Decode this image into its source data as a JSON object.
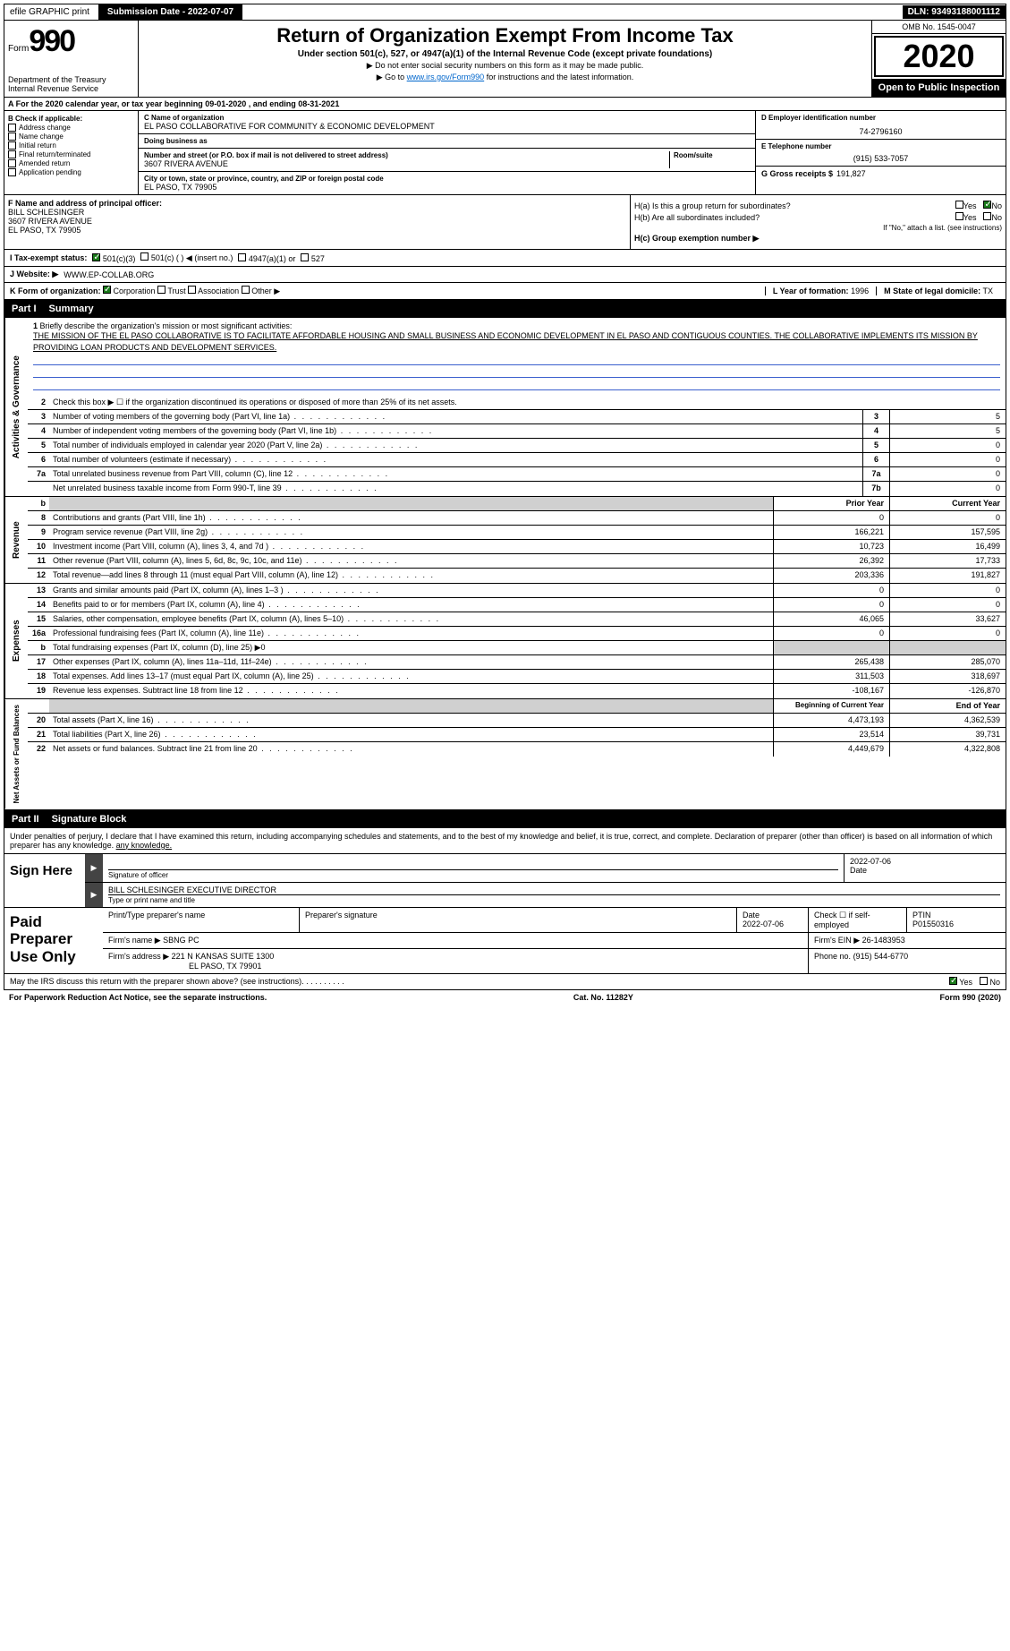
{
  "topbar": {
    "efile": "efile GRAPHIC print",
    "submission_label": "Submission Date - 2022-07-07",
    "dln": "DLN: 93493188001112"
  },
  "header": {
    "form_prefix": "Form",
    "form_number": "990",
    "dept": "Department of the Treasury\nInternal Revenue Service",
    "title": "Return of Organization Exempt From Income Tax",
    "subtitle": "Under section 501(c), 527, or 4947(a)(1) of the Internal Revenue Code (except private foundations)",
    "note1": "▶ Do not enter social security numbers on this form as it may be made public.",
    "note2_pre": "▶ Go to ",
    "note2_link": "www.irs.gov/Form990",
    "note2_post": " for instructions and the latest information.",
    "omb": "OMB No. 1545-0047",
    "year": "2020",
    "open": "Open to Public Inspection"
  },
  "row_a": "A For the 2020 calendar year, or tax year beginning 09-01-2020    , and ending 08-31-2021",
  "box_b": {
    "label": "B Check if applicable:",
    "items": [
      "Address change",
      "Name change",
      "Initial return",
      "Final return/terminated",
      "Amended return",
      "Application pending"
    ]
  },
  "box_c": {
    "name_lbl": "C Name of organization",
    "name": "EL PASO COLLABORATIVE FOR COMMUNITY & ECONOMIC DEVELOPMENT",
    "dba_lbl": "Doing business as",
    "dba": "",
    "addr_lbl": "Number and street (or P.O. box if mail is not delivered to street address)",
    "addr": "3607 RIVERA AVENUE",
    "room_lbl": "Room/suite",
    "city_lbl": "City or town, state or province, country, and ZIP or foreign postal code",
    "city": "EL PASO, TX  79905"
  },
  "box_d": {
    "lbl": "D Employer identification number",
    "val": "74-2796160"
  },
  "box_e": {
    "lbl": "E Telephone number",
    "val": "(915) 533-7057"
  },
  "box_g": {
    "lbl": "G Gross receipts $",
    "val": "191,827"
  },
  "box_f": {
    "lbl": "F  Name and address of principal officer:",
    "name": "BILL SCHLESINGER",
    "addr": "3607 RIVERA AVENUE",
    "city": "EL PASO, TX  79905"
  },
  "box_h": {
    "a": "H(a)  Is this a group return for subordinates?",
    "b": "H(b)  Are all subordinates included?",
    "note": "If \"No,\" attach a list. (see instructions)",
    "c": "H(c)  Group exemption number ▶"
  },
  "box_i": {
    "lbl": "I   Tax-exempt status:",
    "opts": [
      "501(c)(3)",
      "501(c) (   ) ◀ (insert no.)",
      "4947(a)(1) or",
      "527"
    ]
  },
  "box_j": {
    "lbl": "J  Website: ▶",
    "val": "WWW.EP-COLLAB.ORG"
  },
  "box_k": {
    "lbl": "K Form of organization:",
    "opts": [
      "Corporation",
      "Trust",
      "Association",
      "Other ▶"
    ]
  },
  "box_l": {
    "lbl": "L Year of formation:",
    "val": "1996"
  },
  "box_m": {
    "lbl": "M State of legal domicile:",
    "val": "TX"
  },
  "part1": {
    "num": "Part I",
    "title": "Summary"
  },
  "mission": {
    "num": "1",
    "lbl": "Briefly describe the organization's mission or most significant activities:",
    "text": "THE MISSION OF THE EL PASO COLLABORATIVE IS TO FACILITATE AFFORDABLE HOUSING AND SMALL BUSINESS AND ECONOMIC DEVELOPMENT IN EL PASO AND CONTIGUOUS COUNTIES. THE COLLABORATIVE IMPLEMENTS ITS MISSION BY PROVIDING LOAN PRODUCTS AND DEVELOPMENT SERVICES."
  },
  "gov_rows": [
    {
      "n": "2",
      "d": "Check this box ▶ ☐ if the organization discontinued its operations or disposed of more than 25% of its net assets.",
      "box": "",
      "v1": "",
      "v2": ""
    },
    {
      "n": "3",
      "d": "Number of voting members of the governing body (Part VI, line 1a)",
      "box": "3",
      "v2": "5"
    },
    {
      "n": "4",
      "d": "Number of independent voting members of the governing body (Part VI, line 1b)",
      "box": "4",
      "v2": "5"
    },
    {
      "n": "5",
      "d": "Total number of individuals employed in calendar year 2020 (Part V, line 2a)",
      "box": "5",
      "v2": "0"
    },
    {
      "n": "6",
      "d": "Total number of volunteers (estimate if necessary)",
      "box": "6",
      "v2": "0"
    },
    {
      "n": "7a",
      "d": "Total unrelated business revenue from Part VIII, column (C), line 12",
      "box": "7a",
      "v2": "0"
    },
    {
      "n": "",
      "d": "Net unrelated business taxable income from Form 990-T, line 39",
      "box": "7b",
      "v2": "0"
    }
  ],
  "col_hdrs": {
    "n": "b",
    "py": "Prior Year",
    "cy": "Current Year"
  },
  "rev_rows": [
    {
      "n": "8",
      "d": "Contributions and grants (Part VIII, line 1h)",
      "v1": "0",
      "v2": "0"
    },
    {
      "n": "9",
      "d": "Program service revenue (Part VIII, line 2g)",
      "v1": "166,221",
      "v2": "157,595"
    },
    {
      "n": "10",
      "d": "Investment income (Part VIII, column (A), lines 3, 4, and 7d )",
      "v1": "10,723",
      "v2": "16,499"
    },
    {
      "n": "11",
      "d": "Other revenue (Part VIII, column (A), lines 5, 6d, 8c, 9c, 10c, and 11e)",
      "v1": "26,392",
      "v2": "17,733"
    },
    {
      "n": "12",
      "d": "Total revenue—add lines 8 through 11 (must equal Part VIII, column (A), line 12)",
      "v1": "203,336",
      "v2": "191,827"
    }
  ],
  "exp_rows": [
    {
      "n": "13",
      "d": "Grants and similar amounts paid (Part IX, column (A), lines 1–3 )",
      "v1": "0",
      "v2": "0"
    },
    {
      "n": "14",
      "d": "Benefits paid to or for members (Part IX, column (A), line 4)",
      "v1": "0",
      "v2": "0"
    },
    {
      "n": "15",
      "d": "Salaries, other compensation, employee benefits (Part IX, column (A), lines 5–10)",
      "v1": "46,065",
      "v2": "33,627"
    },
    {
      "n": "16a",
      "d": "Professional fundraising fees (Part IX, column (A), line 11e)",
      "v1": "0",
      "v2": "0"
    },
    {
      "n": "b",
      "d": "Total fundraising expenses (Part IX, column (D), line 25) ▶0",
      "v1": "",
      "v2": "",
      "shade": true
    },
    {
      "n": "17",
      "d": "Other expenses (Part IX, column (A), lines 11a–11d, 11f–24e)",
      "v1": "265,438",
      "v2": "285,070"
    },
    {
      "n": "18",
      "d": "Total expenses. Add lines 13–17 (must equal Part IX, column (A), line 25)",
      "v1": "311,503",
      "v2": "318,697"
    },
    {
      "n": "19",
      "d": "Revenue less expenses. Subtract line 18 from line 12",
      "v1": "-108,167",
      "v2": "-126,870"
    }
  ],
  "net_hdrs": {
    "py": "Beginning of Current Year",
    "cy": "End of Year"
  },
  "net_rows": [
    {
      "n": "20",
      "d": "Total assets (Part X, line 16)",
      "v1": "4,473,193",
      "v2": "4,362,539"
    },
    {
      "n": "21",
      "d": "Total liabilities (Part X, line 26)",
      "v1": "23,514",
      "v2": "39,731"
    },
    {
      "n": "22",
      "d": "Net assets or fund balances. Subtract line 21 from line 20",
      "v1": "4,449,679",
      "v2": "4,322,808"
    }
  ],
  "vtabs": {
    "gov": "Activities & Governance",
    "rev": "Revenue",
    "exp": "Expenses",
    "net": "Net Assets or Fund Balances"
  },
  "part2": {
    "num": "Part II",
    "title": "Signature Block"
  },
  "sig_intro": "Under penalties of perjury, I declare that I have examined this return, including accompanying schedules and statements, and to the best of my knowledge and belief, it is true, correct, and complete. Declaration of preparer (other than officer) is based on all information of which preparer has any knowledge.",
  "sign": {
    "title": "Sign Here",
    "sig_lbl": "Signature of officer",
    "date": "2022-07-06",
    "date_lbl": "Date",
    "name": "BILL SCHLESINGER  EXECUTIVE DIRECTOR",
    "name_lbl": "Type or print name and title"
  },
  "prep": {
    "title": "Paid Preparer Use Only",
    "h1": "Print/Type preparer's name",
    "h2": "Preparer's signature",
    "h3": "Date",
    "h3v": "2022-07-06",
    "h4": "Check ☐ if self-employed",
    "h5": "PTIN",
    "h5v": "P01550316",
    "firm_lbl": "Firm's name    ▶",
    "firm": "SBNG PC",
    "ein_lbl": "Firm's EIN ▶",
    "ein": "26-1483953",
    "addr_lbl": "Firm's address ▶",
    "addr": "221 N KANSAS SUITE 1300",
    "addr2": "EL PASO, TX  79901",
    "phone_lbl": "Phone no.",
    "phone": "(915) 544-6770"
  },
  "discuss": "May the IRS discuss this return with the preparer shown above? (see instructions)",
  "foot": {
    "left": "For Paperwork Reduction Act Notice, see the separate instructions.",
    "mid": "Cat. No. 11282Y",
    "right": "Form 990 (2020)"
  },
  "yes": "Yes",
  "no": "No"
}
